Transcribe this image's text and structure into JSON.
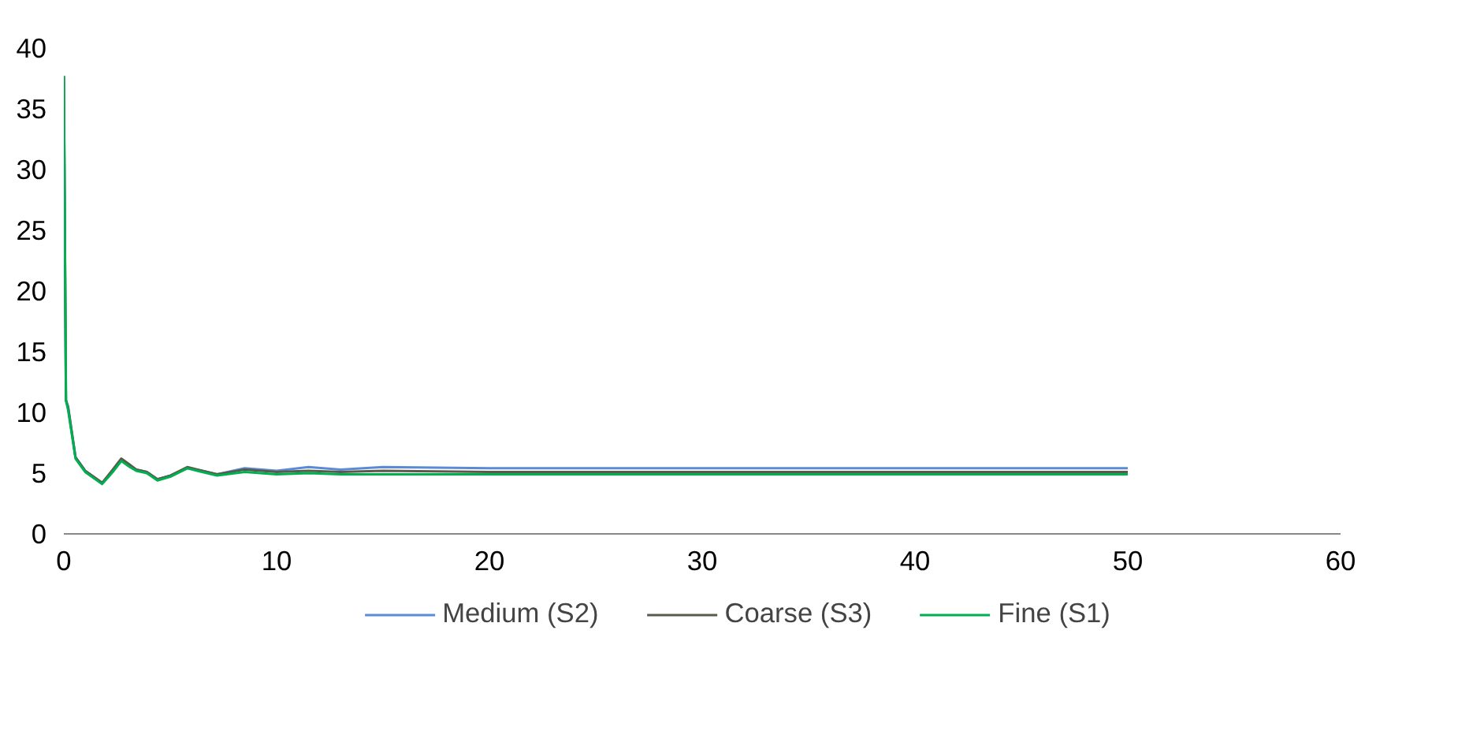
{
  "chart_data": {
    "type": "line",
    "xlim": [
      0,
      60
    ],
    "ylim": [
      0,
      40
    ],
    "xticks": [
      0,
      10,
      20,
      30,
      40,
      50,
      60
    ],
    "yticks": [
      0,
      5,
      10,
      15,
      20,
      25,
      30,
      35,
      40
    ],
    "grid": false,
    "legend": "bottom",
    "marker": "none",
    "line_style": "solid",
    "series": [
      {
        "name": "Medium (S2)",
        "color": "#5b8bd6",
        "x": [
          0,
          0.1,
          0.2,
          0.55,
          1.0,
          1.8,
          2.3,
          2.7,
          3.1,
          3.4,
          3.9,
          4.4,
          5.0,
          5.8,
          6.5,
          7.2,
          8.5,
          10,
          11.5,
          13,
          15,
          20,
          25,
          30,
          40,
          50
        ],
        "values": [
          37.7,
          11,
          10.5,
          6.3,
          5.2,
          4.2,
          5.2,
          6.1,
          5.6,
          5.3,
          5.1,
          4.5,
          4.8,
          5.4,
          5.2,
          4.9,
          5.4,
          5.2,
          5.5,
          5.3,
          5.5,
          5.4,
          5.4,
          5.4,
          5.4,
          5.4
        ]
      },
      {
        "name": "Coarse (S3)",
        "color": "#5a5a4a",
        "x": [
          0,
          0.1,
          0.2,
          0.55,
          1.0,
          1.8,
          2.3,
          2.7,
          3.1,
          3.4,
          3.9,
          4.4,
          5.0,
          5.8,
          6.5,
          7.2,
          8.5,
          10,
          11.5,
          13,
          15,
          20,
          25,
          30,
          40,
          50
        ],
        "values": [
          37.7,
          11,
          10.4,
          6.3,
          5.2,
          4.2,
          5.3,
          6.2,
          5.7,
          5.3,
          5.1,
          4.5,
          4.8,
          5.5,
          5.2,
          4.9,
          5.3,
          5.1,
          5.2,
          5.1,
          5.2,
          5.1,
          5.1,
          5.1,
          5.1,
          5.1
        ]
      },
      {
        "name": "Fine (S1)",
        "color": "#00b050",
        "x": [
          0,
          0.1,
          0.2,
          0.55,
          1.0,
          1.8,
          2.3,
          2.7,
          3.1,
          3.4,
          3.9,
          4.4,
          5.0,
          5.8,
          6.5,
          7.2,
          8.5,
          10,
          11.5,
          13,
          15,
          20,
          25,
          30,
          40,
          50
        ],
        "values": [
          37.7,
          11,
          10.2,
          6.2,
          5.1,
          4.1,
          5.1,
          6.0,
          5.5,
          5.2,
          5.0,
          4.4,
          4.7,
          5.4,
          5.1,
          4.8,
          5.1,
          4.9,
          5.0,
          4.9,
          4.9,
          4.9,
          4.9,
          4.9,
          4.9,
          4.9
        ]
      }
    ]
  }
}
